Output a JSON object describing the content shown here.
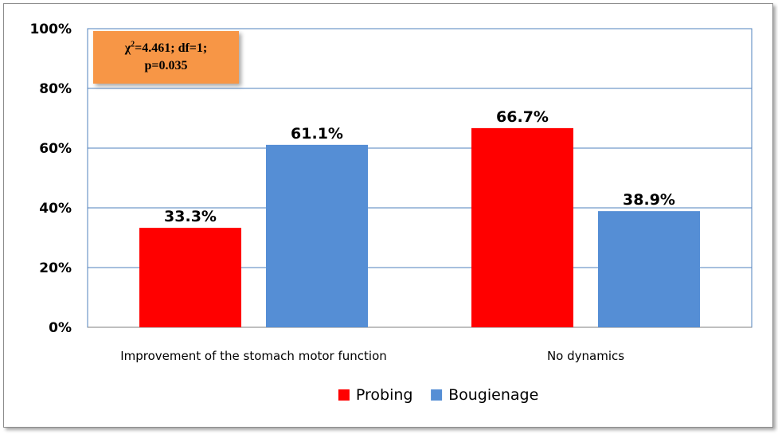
{
  "chart_data": {
    "type": "bar",
    "categories": [
      "Improvement  of the stomach motor function",
      "No dynamics"
    ],
    "series": [
      {
        "name": "Probing",
        "values": [
          33.3,
          66.7
        ],
        "color": "#ff0000"
      },
      {
        "name": "Bougienage",
        "values": [
          61.1,
          38.9
        ],
        "color": "#558ed5"
      }
    ],
    "data_labels": [
      [
        "33.3%",
        "66.7%"
      ],
      [
        "61.1%",
        "38.9%"
      ]
    ],
    "yticks": [
      "0%",
      "20%",
      "40%",
      "60%",
      "80%",
      "100%"
    ],
    "ylim": [
      0,
      100
    ],
    "grid": true,
    "legend_position": "bottom",
    "annotation": {
      "chi_symbol": "χ",
      "chi_superscript": "2",
      "line1_rest": "=4.461; df=1;",
      "line2": "p=0.035"
    },
    "grid_color": "#4f81bd"
  }
}
